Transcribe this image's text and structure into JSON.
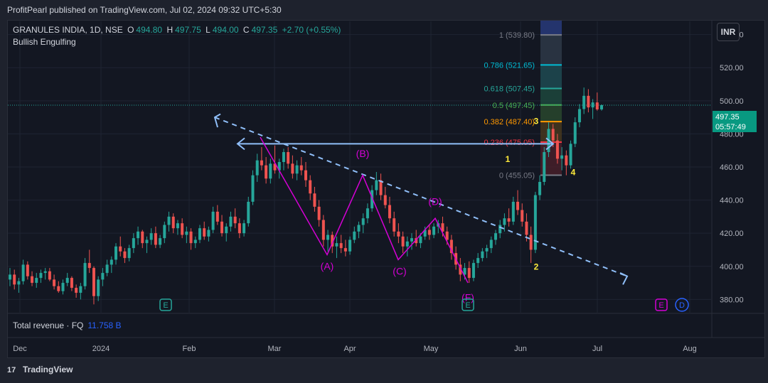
{
  "header": {
    "published": "ProfitPearl published on TradingView.com, Jul 02, 2024 09:32 UTC+5:30"
  },
  "legend": {
    "symbol": "GRANULES INDIA, 1D, NSE",
    "o_label": "O",
    "o": "494.80",
    "h_label": "H",
    "h": "497.75",
    "l_label": "L",
    "l": "494.00",
    "c_label": "C",
    "c": "497.35",
    "change": "+2.70 (+0.55%)",
    "indicator": "Bullish Engulfing"
  },
  "currency_button": "INR",
  "price_label": {
    "price": "497.35",
    "countdown": "05:57:49"
  },
  "revenue": {
    "label": "Total revenue · FQ",
    "value": "11.758 B"
  },
  "footer": {
    "brand": "TradingView"
  },
  "colors": {
    "up": "#26a69a",
    "down": "#ef5350",
    "pattern": "#d500d5",
    "wave": "#ffeb3b",
    "trend": "#90bff9"
  },
  "chart_data": {
    "type": "candlestick",
    "y_ticks": [
      "540.00",
      "520.00",
      "500.00",
      "480.00",
      "460.00",
      "440.00",
      "420.00",
      "400.00",
      "380.00"
    ],
    "y_range": [
      372,
      548
    ],
    "x_ticks": [
      "Dec",
      "2024",
      "Feb",
      "Mar",
      "Apr",
      "May",
      "Jun",
      "Jul",
      "Aug"
    ],
    "last_price": 497.35,
    "fib_levels": [
      {
        "label": "1 (539.80)",
        "value": 539.8,
        "color": "#787b86"
      },
      {
        "label": "0.786 (521.65)",
        "value": 521.65,
        "color": "#00bcd4"
      },
      {
        "label": "0.618 (507.45)",
        "value": 507.45,
        "color": "#26a69a"
      },
      {
        "label": "0.5 (497.45)",
        "value": 497.45,
        "color": "#4caf50"
      },
      {
        "label": "0.382 (487.40)",
        "value": 487.4,
        "color": "#ff9800"
      },
      {
        "label": "0.236 (475.05)",
        "value": 475.05,
        "color": "#f23645"
      },
      {
        "label": "0 (455.05)",
        "value": 455.05,
        "color": "#787b86"
      }
    ],
    "pattern_labels": [
      {
        "label": "(A)",
        "value": 398
      },
      {
        "label": "(B)",
        "value": 466
      },
      {
        "label": "(C)",
        "value": 395
      },
      {
        "label": "(D)",
        "value": 437
      },
      {
        "label": "(F)",
        "value": 379
      }
    ],
    "wave_labels": [
      "1",
      "2",
      "3",
      "4"
    ],
    "earnings_markers": [
      "E",
      "E"
    ],
    "future_markers": [
      "E",
      "D"
    ],
    "candles": [
      [
        392,
        399,
        388,
        395
      ],
      [
        395,
        398,
        386,
        389
      ],
      [
        389,
        393,
        384,
        391
      ],
      [
        391,
        404,
        389,
        401
      ],
      [
        401,
        403,
        392,
        394
      ],
      [
        394,
        397,
        388,
        390
      ],
      [
        390,
        396,
        387,
        393
      ],
      [
        393,
        398,
        390,
        396
      ],
      [
        396,
        399,
        392,
        397
      ],
      [
        397,
        399,
        391,
        392
      ],
      [
        392,
        395,
        386,
        388
      ],
      [
        388,
        391,
        384,
        385
      ],
      [
        385,
        392,
        383,
        390
      ],
      [
        390,
        396,
        388,
        393
      ],
      [
        393,
        394,
        385,
        387
      ],
      [
        387,
        389,
        381,
        384
      ],
      [
        384,
        390,
        380,
        388
      ],
      [
        388,
        405,
        386,
        402
      ],
      [
        402,
        410,
        396,
        399
      ],
      [
        399,
        400,
        377,
        382
      ],
      [
        382,
        394,
        379,
        392
      ],
      [
        392,
        399,
        388,
        396
      ],
      [
        396,
        404,
        394,
        401
      ],
      [
        401,
        406,
        396,
        404
      ],
      [
        404,
        414,
        401,
        412
      ],
      [
        412,
        418,
        406,
        409
      ],
      [
        409,
        411,
        402,
        405
      ],
      [
        405,
        413,
        403,
        411
      ],
      [
        411,
        420,
        408,
        417
      ],
      [
        417,
        424,
        413,
        421
      ],
      [
        421,
        422,
        411,
        414
      ],
      [
        414,
        418,
        408,
        416
      ],
      [
        416,
        423,
        413,
        420
      ],
      [
        420,
        424,
        411,
        413
      ],
      [
        413,
        419,
        411,
        417
      ],
      [
        417,
        427,
        414,
        425
      ],
      [
        425,
        433,
        421,
        430
      ],
      [
        430,
        432,
        420,
        423
      ],
      [
        423,
        428,
        419,
        426
      ],
      [
        426,
        429,
        417,
        419
      ],
      [
        419,
        424,
        414,
        421
      ],
      [
        421,
        423,
        410,
        414
      ],
      [
        414,
        418,
        411,
        416
      ],
      [
        416,
        425,
        414,
        423
      ],
      [
        423,
        427,
        416,
        418
      ],
      [
        418,
        424,
        415,
        422
      ],
      [
        422,
        436,
        420,
        433
      ],
      [
        433,
        437,
        425,
        427
      ],
      [
        427,
        431,
        418,
        420
      ],
      [
        420,
        426,
        415,
        424
      ],
      [
        424,
        433,
        421,
        430
      ],
      [
        430,
        435,
        423,
        426
      ],
      [
        426,
        429,
        417,
        420
      ],
      [
        420,
        428,
        418,
        426
      ],
      [
        426,
        442,
        424,
        439
      ],
      [
        439,
        458,
        437,
        455
      ],
      [
        455,
        468,
        451,
        464
      ],
      [
        464,
        472,
        458,
        461
      ],
      [
        461,
        466,
        450,
        453
      ],
      [
        453,
        465,
        450,
        462
      ],
      [
        462,
        473,
        456,
        458
      ],
      [
        458,
        465,
        453,
        463
      ],
      [
        463,
        471,
        458,
        469
      ],
      [
        469,
        472,
        459,
        462
      ],
      [
        462,
        467,
        453,
        456
      ],
      [
        456,
        464,
        452,
        461
      ],
      [
        461,
        466,
        455,
        458
      ],
      [
        458,
        463,
        448,
        452
      ],
      [
        452,
        455,
        440,
        444
      ],
      [
        444,
        448,
        433,
        436
      ],
      [
        436,
        440,
        424,
        428
      ],
      [
        428,
        431,
        412,
        416
      ],
      [
        416,
        422,
        409,
        419
      ],
      [
        419,
        421,
        408,
        412
      ],
      [
        412,
        418,
        405,
        414
      ],
      [
        414,
        419,
        408,
        411
      ],
      [
        411,
        416,
        406,
        409
      ],
      [
        409,
        418,
        407,
        416
      ],
      [
        416,
        424,
        414,
        421
      ],
      [
        421,
        427,
        417,
        425
      ],
      [
        425,
        432,
        420,
        429
      ],
      [
        429,
        438,
        426,
        435
      ],
      [
        435,
        449,
        433,
        446
      ],
      [
        446,
        457,
        443,
        452
      ],
      [
        452,
        456,
        440,
        443
      ],
      [
        443,
        448,
        435,
        437
      ],
      [
        437,
        442,
        426,
        429
      ],
      [
        429,
        433,
        418,
        421
      ],
      [
        421,
        426,
        414,
        418
      ],
      [
        418,
        421,
        408,
        412
      ],
      [
        412,
        418,
        406,
        415
      ],
      [
        415,
        420,
        410,
        417
      ],
      [
        417,
        422,
        412,
        414
      ],
      [
        414,
        420,
        411,
        418
      ],
      [
        418,
        424,
        416,
        422
      ],
      [
        422,
        425,
        416,
        419
      ],
      [
        419,
        426,
        417,
        424
      ],
      [
        424,
        428,
        420,
        426
      ],
      [
        426,
        430,
        418,
        421
      ],
      [
        421,
        424,
        413,
        416
      ],
      [
        416,
        419,
        404,
        408
      ],
      [
        408,
        412,
        398,
        401
      ],
      [
        401,
        405,
        391,
        395
      ],
      [
        395,
        402,
        392,
        399
      ],
      [
        399,
        403,
        390,
        393
      ],
      [
        393,
        404,
        391,
        402
      ],
      [
        402,
        408,
        399,
        405
      ],
      [
        405,
        411,
        403,
        409
      ],
      [
        409,
        413,
        405,
        411
      ],
      [
        411,
        418,
        408,
        416
      ],
      [
        416,
        422,
        413,
        420
      ],
      [
        420,
        428,
        417,
        425
      ],
      [
        425,
        432,
        421,
        429
      ],
      [
        429,
        435,
        424,
        427
      ],
      [
        427,
        442,
        425,
        439
      ],
      [
        439,
        446,
        431,
        434
      ],
      [
        434,
        438,
        424,
        427
      ],
      [
        427,
        432,
        415,
        419
      ],
      [
        419,
        424,
        402,
        410
      ],
      [
        410,
        445,
        408,
        443
      ],
      [
        443,
        455,
        440,
        451
      ],
      [
        451,
        472,
        449,
        469
      ],
      [
        469,
        487,
        466,
        483
      ],
      [
        483,
        486,
        472,
        476
      ],
      [
        476,
        480,
        462,
        465
      ],
      [
        465,
        472,
        458,
        467
      ],
      [
        467,
        470,
        455,
        461
      ],
      [
        461,
        476,
        459,
        474
      ],
      [
        474,
        490,
        472,
        487
      ],
      [
        487,
        498,
        484,
        495
      ],
      [
        495,
        508,
        492,
        503
      ],
      [
        503,
        507,
        493,
        496
      ],
      [
        496,
        501,
        489,
        499
      ],
      [
        499,
        505,
        494,
        494.8
      ],
      [
        494.8,
        497.75,
        494,
        497.35
      ]
    ]
  }
}
